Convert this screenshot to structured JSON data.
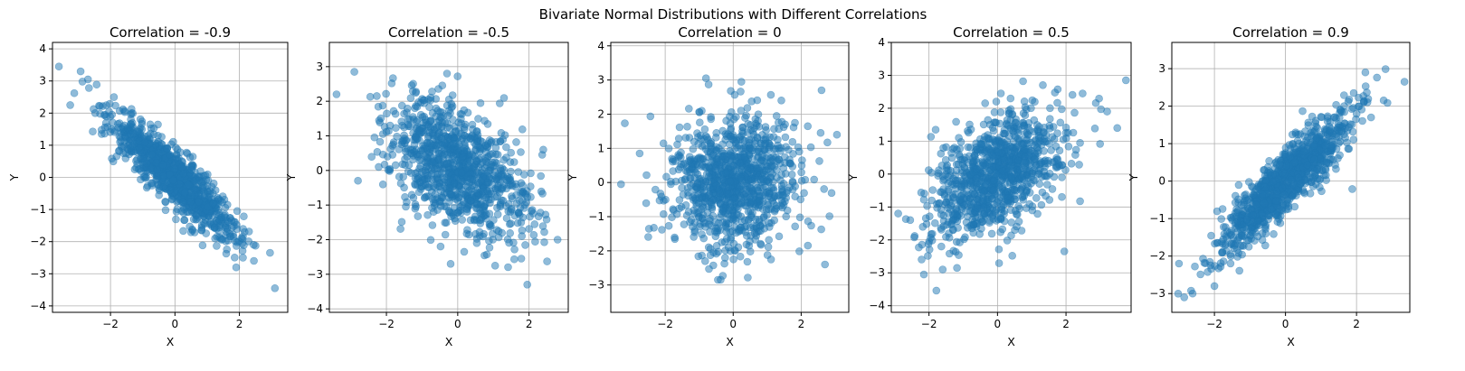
{
  "figure": {
    "suptitle": "Bivariate Normal Distributions with Different Correlations"
  },
  "chart_data": [
    {
      "type": "scatter",
      "title": "Correlation = -0.9",
      "xlabel": "X",
      "ylabel": "Y",
      "correlation": -0.9,
      "xlim": [
        -3.8,
        3.5
      ],
      "ylim": [
        -4.2,
        4.2
      ],
      "xticks": [
        -2,
        0,
        2
      ],
      "yticks": [
        -4,
        -3,
        -2,
        -1,
        0,
        1,
        2,
        3,
        4
      ],
      "grid": true,
      "point_count": 1000,
      "notable_points": [
        [
          -3.6,
          3.45
        ],
        [
          -2.7,
          3.05
        ],
        [
          3.1,
          -3.45
        ],
        [
          1.9,
          -2.8
        ],
        [
          2.45,
          -2.6
        ],
        [
          -3.25,
          2.25
        ],
        [
          2.95,
          -2.35
        ]
      ]
    },
    {
      "type": "scatter",
      "title": "Correlation = -0.5",
      "xlabel": "X",
      "ylabel": "Y",
      "correlation": -0.5,
      "xlim": [
        -3.6,
        3.1
      ],
      "ylim": [
        -4.1,
        3.7
      ],
      "xticks": [
        -2,
        0,
        2
      ],
      "yticks": [
        -4,
        -3,
        -2,
        -1,
        0,
        1,
        2,
        3
      ],
      "grid": true,
      "point_count": 1000,
      "notable_points": [
        [
          -3.4,
          2.2
        ],
        [
          -2.9,
          2.85
        ],
        [
          -0.3,
          2.8
        ],
        [
          1.95,
          -3.3
        ],
        [
          2.8,
          -2.0
        ],
        [
          -0.2,
          -2.7
        ],
        [
          1.05,
          -2.75
        ],
        [
          2.4,
          0.6
        ]
      ]
    },
    {
      "type": "scatter",
      "title": "Correlation = 0",
      "xlabel": "X",
      "ylabel": "Y",
      "correlation": 0.0,
      "xlim": [
        -3.6,
        3.4
      ],
      "ylim": [
        -3.8,
        4.1
      ],
      "xticks": [
        -2,
        0,
        2
      ],
      "yticks": [
        -3,
        -2,
        -1,
        0,
        1,
        2,
        3,
        4
      ],
      "grid": true,
      "point_count": 1000,
      "notable_points": [
        [
          -3.3,
          -0.05
        ],
        [
          -0.8,
          3.05
        ],
        [
          -0.45,
          -2.85
        ],
        [
          2.6,
          2.7
        ],
        [
          3.05,
          1.4
        ],
        [
          2.7,
          -2.4
        ],
        [
          -2.75,
          0.85
        ]
      ]
    },
    {
      "type": "scatter",
      "title": "Correlation = 0.5",
      "xlabel": "X",
      "ylabel": "Y",
      "correlation": 0.5,
      "xlim": [
        -3.1,
        3.9
      ],
      "ylim": [
        -4.2,
        4.0
      ],
      "xticks": [
        -2,
        0,
        2
      ],
      "yticks": [
        -4,
        -3,
        -2,
        -1,
        0,
        1,
        2,
        3,
        4
      ],
      "grid": true,
      "point_count": 1000,
      "notable_points": [
        [
          3.75,
          2.85
        ],
        [
          -2.15,
          -3.05
        ],
        [
          -2.9,
          -1.2
        ],
        [
          -1.6,
          -2.9
        ],
        [
          3.2,
          1.9
        ],
        [
          1.95,
          -2.35
        ],
        [
          0.1,
          2.45
        ]
      ]
    },
    {
      "type": "scatter",
      "title": "Correlation = 0.9",
      "xlabel": "X",
      "ylabel": "Y",
      "correlation": 0.9,
      "xlim": [
        -3.2,
        3.5
      ],
      "ylim": [
        -3.5,
        3.7
      ],
      "xticks": [
        -2,
        0,
        2
      ],
      "yticks": [
        -3,
        -2,
        -1,
        0,
        1,
        2,
        3
      ],
      "grid": true,
      "point_count": 1000,
      "notable_points": [
        [
          -2.85,
          -3.1
        ],
        [
          3.35,
          2.65
        ],
        [
          2.25,
          2.9
        ],
        [
          -2.0,
          -2.8
        ],
        [
          -3.0,
          -2.2
        ],
        [
          1.65,
          2.0
        ]
      ]
    }
  ],
  "style": {
    "point_color": "#1f77b4",
    "point_alpha": 0.5,
    "grid_color": "#b0b0b0"
  }
}
